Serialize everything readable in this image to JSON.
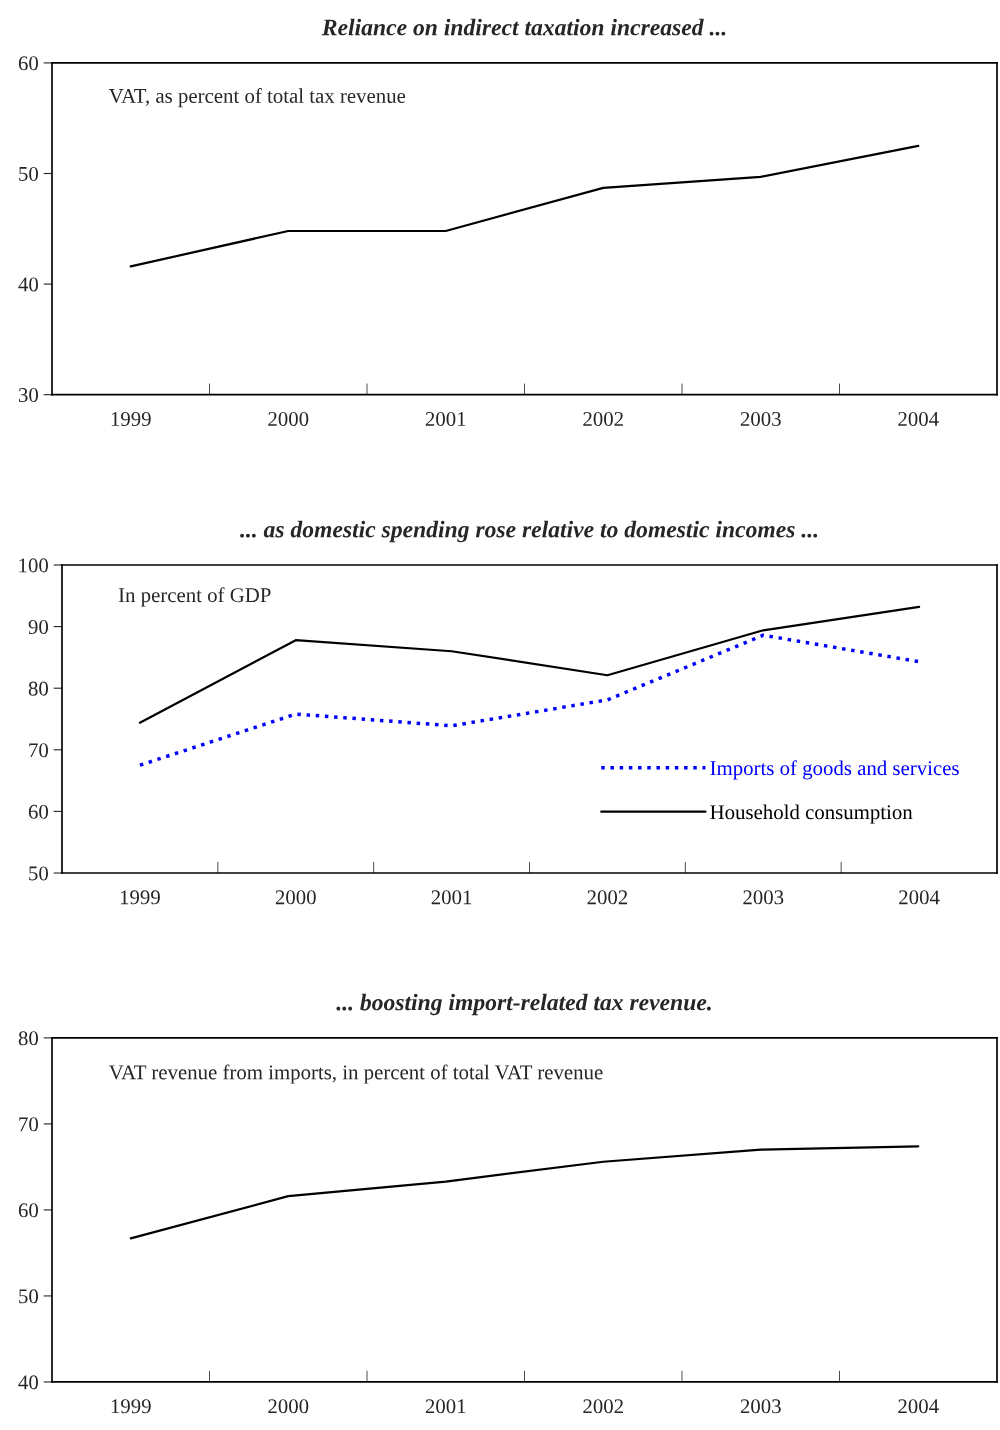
{
  "chart_data": [
    {
      "type": "line",
      "title": "Reliance on indirect taxation increased ...",
      "annotations": [
        "VAT, as percent of total tax revenue"
      ],
      "categories": [
        "1999",
        "2000",
        "2001",
        "2002",
        "2003",
        "2004"
      ],
      "series": [
        {
          "color": "#000000",
          "values": [
            41.6,
            44.8,
            44.8,
            48.7,
            49.7,
            52.5
          ]
        }
      ],
      "ylim": [
        30,
        60
      ],
      "yticks": [
        30,
        40,
        50,
        60
      ],
      "grid": false,
      "legend": false
    },
    {
      "type": "line",
      "title": "... as domestic spending rose relative to domestic incomes ...",
      "annotations": [
        "In percent of GDP"
      ],
      "categories": [
        "1999",
        "2000",
        "2001",
        "2002",
        "2003",
        "2004"
      ],
      "series": [
        {
          "name": "Imports of goods and services",
          "color": "#0000ff",
          "line_style": "dotted",
          "values": [
            67.5,
            75.8,
            73.9,
            78.1,
            88.6,
            84.3
          ]
        },
        {
          "name": "Household consumption",
          "color": "#000000",
          "line_style": "solid",
          "values": [
            74.4,
            87.8,
            86.0,
            82.1,
            89.4,
            93.2
          ]
        }
      ],
      "ylim": [
        50,
        100
      ],
      "yticks": [
        50,
        60,
        70,
        80,
        90,
        100
      ],
      "grid": false,
      "legend": "bottom right"
    },
    {
      "type": "line",
      "title": "... boosting import-related tax revenue.",
      "annotations": [
        "VAT revenue from imports, in percent of total VAT revenue"
      ],
      "categories": [
        "1999",
        "2000",
        "2001",
        "2002",
        "2003",
        "2004"
      ],
      "series": [
        {
          "color": "#000000",
          "values": [
            56.7,
            61.6,
            63.3,
            65.6,
            67.0,
            67.4
          ]
        }
      ],
      "ylim": [
        40,
        80
      ],
      "yticks": [
        40,
        50,
        60,
        70,
        80
      ],
      "grid": false,
      "legend": false
    }
  ]
}
